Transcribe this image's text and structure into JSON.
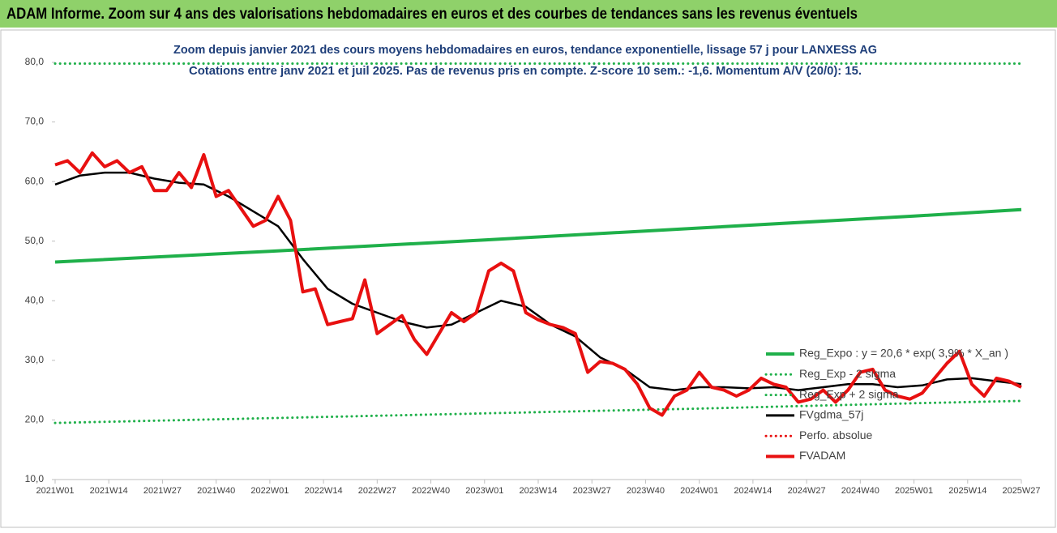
{
  "header": {
    "title": "ADAM Informe. Zoom sur 4 ans des valorisations hebdomadaires en euros et des courbes de tendances sans les revenus éventuels"
  },
  "chart_data": {
    "type": "line",
    "title": "Zoom depuis janvier 2021 des cours moyens hebdomadaires en euros, tendance exponentielle, lissage 57 j pour LANXESS AG",
    "subtitle": "Cotations entre janv 2021 et juil 2025. Pas de revenus pris en compte. Z-score 10 sem.: -1,6. Momentum A/V (20/0): 15.",
    "xlim": [
      0,
      234
    ],
    "xticks": [
      {
        "value": 0,
        "label": "2021W01"
      },
      {
        "value": 13,
        "label": "2021W14"
      },
      {
        "value": 26,
        "label": "2021W27"
      },
      {
        "value": 39,
        "label": "2021W40"
      },
      {
        "value": 52,
        "label": "2022W01"
      },
      {
        "value": 65,
        "label": "2022W14"
      },
      {
        "value": 78,
        "label": "2022W27"
      },
      {
        "value": 91,
        "label": "2022W40"
      },
      {
        "value": 104,
        "label": "2023W01"
      },
      {
        "value": 117,
        "label": "2023W14"
      },
      {
        "value": 130,
        "label": "2023W27"
      },
      {
        "value": 143,
        "label": "2023W40"
      },
      {
        "value": 156,
        "label": "2024W01"
      },
      {
        "value": 169,
        "label": "2024W14"
      },
      {
        "value": 182,
        "label": "2024W27"
      },
      {
        "value": 195,
        "label": "2024W40"
      },
      {
        "value": 208,
        "label": "2025W01"
      },
      {
        "value": 221,
        "label": "2025W14"
      },
      {
        "value": 234,
        "label": "2025W27"
      }
    ],
    "ylim": [
      10,
      80
    ],
    "yticks": [
      {
        "value": 10,
        "label": "10,0"
      },
      {
        "value": 20,
        "label": "20,0"
      },
      {
        "value": 30,
        "label": "30,0"
      },
      {
        "value": 40,
        "label": "40,0"
      },
      {
        "value": 50,
        "label": "50,0"
      },
      {
        "value": 60,
        "label": "60,0"
      },
      {
        "value": 70,
        "label": "70,0"
      },
      {
        "value": 80,
        "label": "80,0"
      }
    ],
    "series": [
      {
        "name": "Reg_Expo : y = 20,6 * exp( 3,9% * X_an )",
        "color": "#1fb04a",
        "style": "solid",
        "x": [
          0,
          52,
          104,
          156,
          208,
          234
        ],
        "values": [
          46.5,
          48.3,
          50.2,
          52.2,
          54.2,
          55.3
        ]
      },
      {
        "name": "Reg_Exp - 2 sigma",
        "color": "#1fb04a",
        "style": "dotted",
        "x": [
          0,
          52,
          104,
          156,
          208,
          234
        ],
        "values": [
          19.5,
          20.3,
          21.1,
          21.9,
          22.8,
          23.2
        ]
      },
      {
        "name": "Reg_Exp + 2 sigma",
        "color": "#1fb04a",
        "style": "dotted",
        "x": [
          0,
          234
        ],
        "values": [
          79.8,
          79.8
        ]
      },
      {
        "name": "FVgdma_57j",
        "color": "#000000",
        "style": "solid",
        "x": [
          0,
          6,
          12,
          18,
          24,
          30,
          36,
          42,
          48,
          54,
          60,
          66,
          72,
          78,
          84,
          90,
          96,
          102,
          108,
          114,
          120,
          126,
          132,
          138,
          144,
          150,
          156,
          162,
          168,
          174,
          180,
          186,
          192,
          198,
          204,
          210,
          216,
          222,
          228,
          234
        ],
        "values": [
          59.5,
          61,
          61.5,
          61.5,
          60.5,
          59.8,
          59.5,
          57.5,
          55,
          52.5,
          47,
          42,
          39.5,
          38,
          36.5,
          35.5,
          36,
          38,
          40,
          39,
          36,
          34,
          30.5,
          28.5,
          25.5,
          25,
          25.5,
          25.5,
          25.3,
          25.5,
          25,
          25.5,
          26,
          26,
          25.5,
          25.8,
          26.8,
          27,
          26.5,
          26
        ]
      },
      {
        "name": "Perfo. absolue",
        "color": "#e81010",
        "style": "dotted",
        "x": [],
        "values": []
      },
      {
        "name": "FVADAM",
        "color": "#e81010",
        "style": "thick",
        "x": [
          0,
          3,
          6,
          9,
          12,
          15,
          18,
          21,
          24,
          27,
          30,
          33,
          36,
          39,
          42,
          45,
          48,
          51,
          54,
          57,
          60,
          63,
          66,
          69,
          72,
          75,
          78,
          81,
          84,
          87,
          90,
          93,
          96,
          99,
          102,
          105,
          108,
          111,
          114,
          117,
          120,
          123,
          126,
          129,
          132,
          135,
          138,
          141,
          144,
          147,
          150,
          153,
          156,
          159,
          162,
          165,
          168,
          171,
          174,
          177,
          180,
          183,
          186,
          189,
          192,
          195,
          198,
          201,
          204,
          207,
          210,
          213,
          216,
          219,
          222,
          225,
          228,
          231,
          234
        ],
        "values": [
          62.8,
          63.5,
          61.5,
          64.8,
          62.5,
          63.5,
          61.5,
          62.5,
          58.5,
          58.5,
          61.5,
          59,
          64.5,
          57.5,
          58.5,
          55.5,
          52.5,
          53.5,
          57.5,
          53.5,
          41.5,
          42,
          36,
          36.5,
          37,
          43.5,
          34.5,
          36,
          37.5,
          33.5,
          31,
          34.5,
          38,
          36.5,
          38,
          45,
          46.3,
          45,
          38,
          36.8,
          36,
          35.5,
          34.5,
          28,
          29.8,
          29.5,
          28.5,
          26,
          22,
          20.8,
          24,
          25,
          28,
          25.5,
          25,
          24,
          25,
          27,
          26,
          25.5,
          23,
          23.5,
          25,
          23,
          25,
          28,
          28.5,
          25,
          24,
          23.5,
          24.5,
          27,
          29.5,
          31.5,
          26,
          24,
          27,
          26.5,
          25.5
        ]
      }
    ]
  }
}
